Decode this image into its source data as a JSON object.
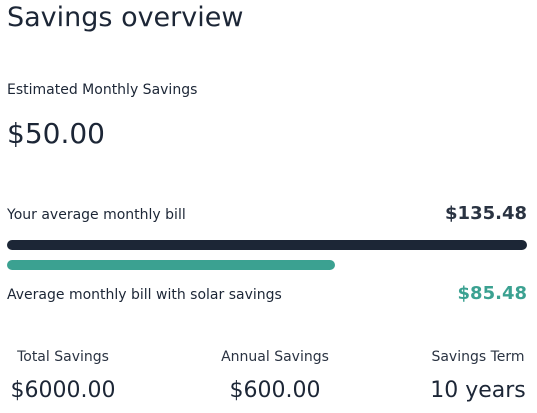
{
  "page": {
    "title": "Savings overview"
  },
  "estimate": {
    "label": "Estimated Monthly Savings",
    "value": "$50.00"
  },
  "bills": {
    "current_label": "Your average monthly bill",
    "current_value": "$135.48",
    "current_fill_percent": 100,
    "solar_label": "Average monthly bill with solar savings",
    "solar_value": "$85.48",
    "solar_fill_percent": 63.1
  },
  "stats": {
    "total_label": "Total Savings",
    "total_value": "$6000.00",
    "annual_label": "Annual Savings",
    "annual_value": "$600.00",
    "term_label": "Savings Term",
    "term_value": "10 years"
  },
  "colors": {
    "dark": "#1c2636",
    "accent": "#3ba191"
  }
}
